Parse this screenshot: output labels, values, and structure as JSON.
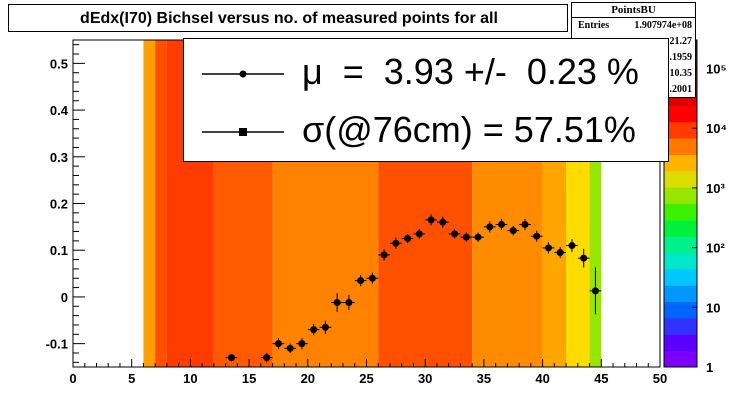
{
  "title": "dEdx(I70) Bichsel versus no. of measured points for all",
  "stats": {
    "name": "PointsBU",
    "rows": [
      {
        "key": "Entries",
        "value": "1.907974e+08"
      },
      {
        "key": "",
        "value": "21.27"
      },
      {
        "key": "",
        "value": "0.1959"
      },
      {
        "key": "",
        "value": "10.35"
      },
      {
        "key": "",
        "value": "0.2001"
      }
    ]
  },
  "legend": {
    "entries": [
      {
        "text": "μ  =  3.93 +/-  0.23 %",
        "marker": "circle"
      },
      {
        "text": "σ(@76cm) = 57.51%",
        "marker": "square"
      }
    ]
  },
  "colors": {
    "frame": "#ffffff",
    "pad": "#ffffff",
    "marker": "#000000"
  },
  "chart_data": [
    {
      "type": "heatmap",
      "title": "dEdx(I70) Bichsel versus no. of measured points for all",
      "xlim": [
        0,
        50
      ],
      "ylim": [
        -0.15,
        0.55
      ],
      "xticks": [
        0,
        5,
        10,
        15,
        20,
        25,
        30,
        35,
        40,
        45,
        50
      ],
      "yticks": [
        -0.1,
        0,
        0.1,
        0.2,
        0.3,
        0.4,
        0.5
      ],
      "z_scale": "log",
      "zlim": [
        1,
        300000
      ],
      "palette_ticks": [
        "1",
        "10",
        "10²",
        "10³",
        "10⁴",
        "10⁵"
      ],
      "x_bins": [
        6,
        7,
        8,
        9,
        10,
        11,
        12,
        13,
        14,
        15,
        16,
        17,
        18,
        19,
        20,
        21,
        22,
        23,
        24,
        25,
        26,
        27,
        28,
        29,
        30,
        31,
        32,
        33,
        34,
        35,
        36,
        37,
        38,
        39,
        40,
        41,
        42,
        43,
        44,
        45
      ],
      "columns": [
        {
          "x0": 6,
          "x1": 7,
          "color": "#ff9f00"
        },
        {
          "x0": 7,
          "x1": 8,
          "color": "#ff5000"
        },
        {
          "x0": 8,
          "x1": 12,
          "color": "#ff3c00"
        },
        {
          "x0": 12,
          "x1": 17,
          "color": "#ff5a00"
        },
        {
          "x0": 17,
          "x1": 26,
          "color": "#ff8200"
        },
        {
          "x0": 26,
          "x1": 34,
          "color": "#ff5000"
        },
        {
          "x0": 34,
          "x1": 40,
          "color": "#ff8c00"
        },
        {
          "x0": 40,
          "x1": 42,
          "color": "#ffa500"
        },
        {
          "x0": 42,
          "x1": 44,
          "color": "#ffdc00"
        },
        {
          "x0": 44,
          "x1": 45,
          "color": "#96e600"
        }
      ],
      "profile": {
        "type": "scatter",
        "x": [
          13.5,
          16.5,
          17.5,
          18.5,
          19.5,
          20.5,
          21.5,
          22.5,
          23.5,
          24.5,
          25.5,
          26.5,
          27.5,
          28.5,
          29.5,
          30.5,
          31.5,
          32.5,
          33.5,
          34.5,
          35.5,
          36.5,
          37.5,
          38.5,
          39.5,
          40.5,
          41.5,
          42.5,
          43.5,
          44.5
        ],
        "y": [
          -0.13,
          -0.13,
          -0.1,
          -0.11,
          -0.1,
          -0.07,
          -0.065,
          -0.012,
          -0.012,
          0.035,
          0.04,
          0.09,
          0.115,
          0.125,
          0.135,
          0.165,
          0.16,
          0.135,
          0.128,
          0.128,
          0.15,
          0.155,
          0.142,
          0.155,
          0.13,
          0.105,
          0.095,
          0.11,
          0.083,
          0.013
        ],
        "yerr": [
          0.008,
          0.01,
          0.012,
          0.01,
          0.012,
          0.012,
          0.014,
          0.02,
          0.016,
          0.012,
          0.012,
          0.012,
          0.012,
          0.01,
          0.01,
          0.012,
          0.012,
          0.01,
          0.01,
          0.01,
          0.012,
          0.012,
          0.01,
          0.012,
          0.012,
          0.012,
          0.012,
          0.014,
          0.02,
          0.05
        ]
      }
    }
  ]
}
